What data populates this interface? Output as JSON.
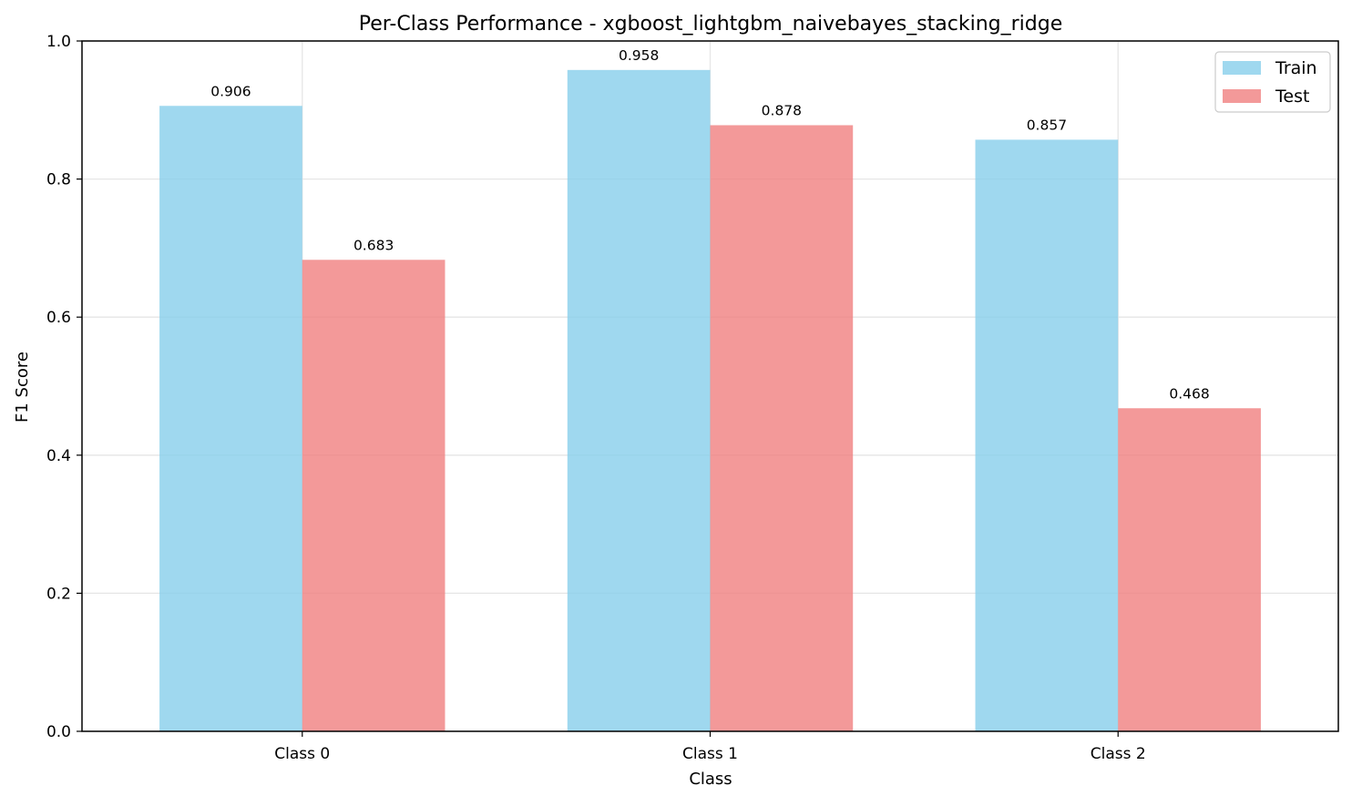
{
  "chart_data": {
    "type": "bar",
    "title": "Per-Class Performance - xgboost_lightgbm_naivebayes_stacking_ridge",
    "xlabel": "Class",
    "ylabel": "F1 Score",
    "categories": [
      "Class 0",
      "Class 1",
      "Class 2"
    ],
    "series": [
      {
        "name": "Train",
        "values": [
          0.906,
          0.958,
          0.857
        ],
        "labels": [
          "0.906",
          "0.958",
          "0.857"
        ],
        "color": "#87CEEB"
      },
      {
        "name": "Test",
        "values": [
          0.683,
          0.878,
          0.468
        ],
        "labels": [
          "0.683",
          "0.878",
          "0.468"
        ],
        "color": "#F08080"
      }
    ],
    "ylim": [
      0,
      1.0
    ],
    "yticks": [
      0.0,
      0.2,
      0.4,
      0.6,
      0.8,
      1.0
    ],
    "ytick_labels": [
      "0.0",
      "0.2",
      "0.4",
      "0.6",
      "0.8",
      "1.0"
    ],
    "grid": true,
    "legend_position": "top-right"
  }
}
